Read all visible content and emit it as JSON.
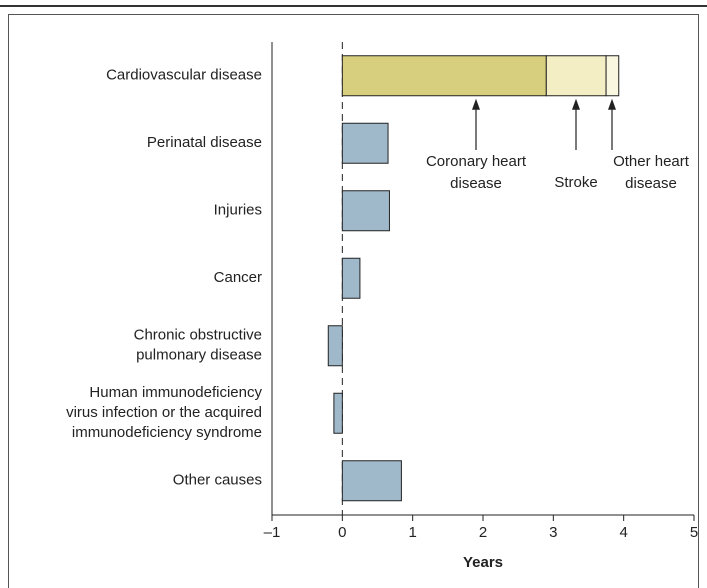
{
  "chart_data": {
    "type": "barh",
    "categories": [
      [
        "Cardiovascular disease"
      ],
      [
        "Perinatal disease"
      ],
      [
        "Injuries"
      ],
      [
        "Cancer"
      ],
      [
        "Chronic obstructive",
        "pulmonary disease"
      ],
      [
        "Human immunodeficiency",
        "virus infection or the acquired",
        "immunodeficiency syndrome"
      ],
      [
        "Other causes"
      ]
    ],
    "values": [
      null,
      0.65,
      0.67,
      0.25,
      -0.2,
      -0.12,
      0.84
    ],
    "color": "#9fb8ca",
    "series": [
      {
        "name": [
          "Coronary heart",
          "disease"
        ],
        "color": "#d8cf7e",
        "values": [
          2.9,
          null,
          null,
          null,
          null,
          null,
          null
        ]
      },
      {
        "name": [
          "Stroke"
        ],
        "color": "#f3eec3",
        "values": [
          0.85,
          null,
          null,
          null,
          null,
          null,
          null
        ]
      },
      {
        "name": [
          "Other heart",
          "disease"
        ],
        "color": "#faf7e0",
        "values": [
          0.18,
          null,
          null,
          null,
          null,
          null,
          null
        ]
      }
    ],
    "xlabel": "Years",
    "xlim": [
      -1,
      5
    ],
    "xticks": [
      {
        "value": -1,
        "label": "–1"
      },
      0,
      1,
      2,
      3,
      4,
      5
    ]
  }
}
